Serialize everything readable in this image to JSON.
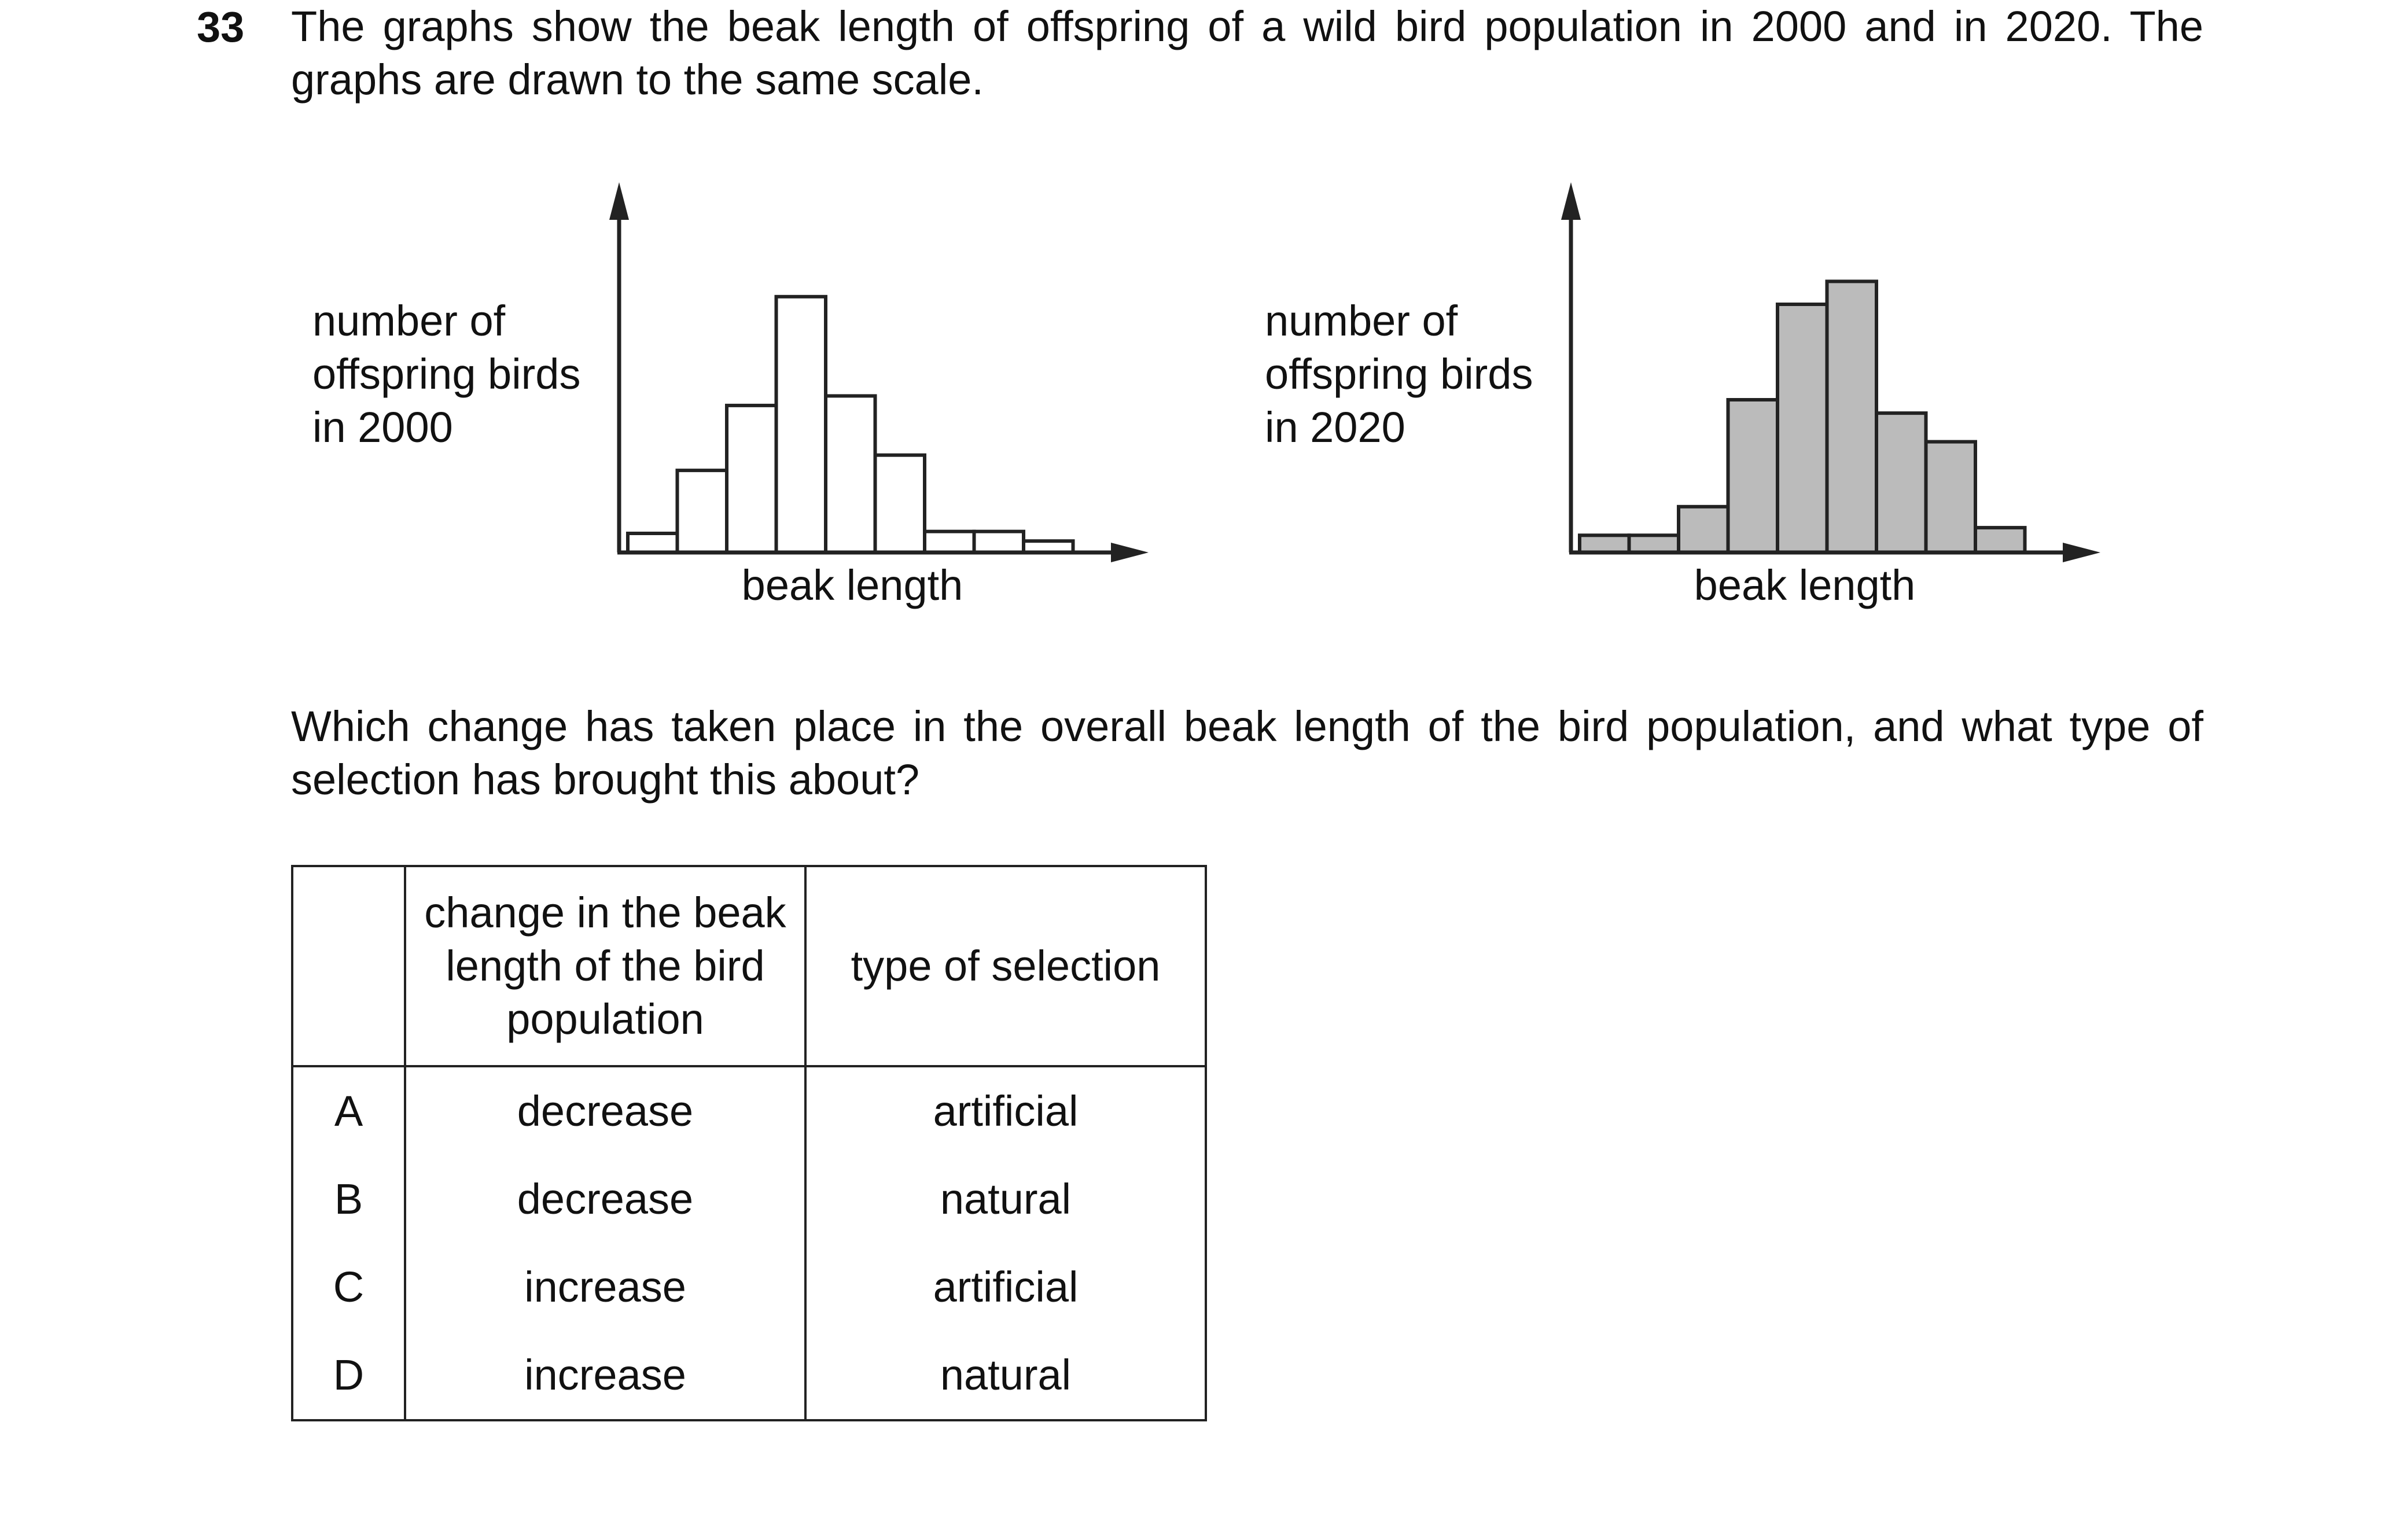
{
  "question": {
    "number": "33",
    "intro": "The graphs show the beak length of offspring of a wild bird population in 2000 and in 2020. The graphs are drawn to the same scale.",
    "prompt": "Which change has taken place in the overall beak length of the bird population, and what type of selection has brought this about?"
  },
  "chart_data": [
    {
      "type": "bar",
      "ylabel_lines": [
        "number of",
        "offspring birds",
        "in 2000"
      ],
      "xlabel": "beak length",
      "values": [
        0.5,
        2.15,
        3.85,
        6.7,
        4.1,
        2.55,
        0.55,
        0.55,
        0.3
      ],
      "fill": "#ffffff",
      "axis_arrows": true,
      "tick_labels": false
    },
    {
      "type": "bar",
      "ylabel_lines": [
        "number of",
        "offspring birds",
        "in 2020"
      ],
      "xlabel": "beak length",
      "values": [
        0.45,
        0.45,
        1.2,
        4.0,
        6.5,
        7.1,
        3.65,
        2.9,
        0.65
      ],
      "fill": "#bbbbbb",
      "axis_arrows": true,
      "tick_labels": false
    }
  ],
  "table": {
    "headers": {
      "change_lines": [
        "change in the beak",
        "length of the bird",
        "population"
      ],
      "type": "type of selection"
    },
    "rows": [
      {
        "letter": "A",
        "change": "decrease",
        "type": "artificial"
      },
      {
        "letter": "B",
        "change": "decrease",
        "type": "natural"
      },
      {
        "letter": "C",
        "change": "increase",
        "type": "artificial"
      },
      {
        "letter": "D",
        "change": "increase",
        "type": "natural"
      }
    ]
  }
}
